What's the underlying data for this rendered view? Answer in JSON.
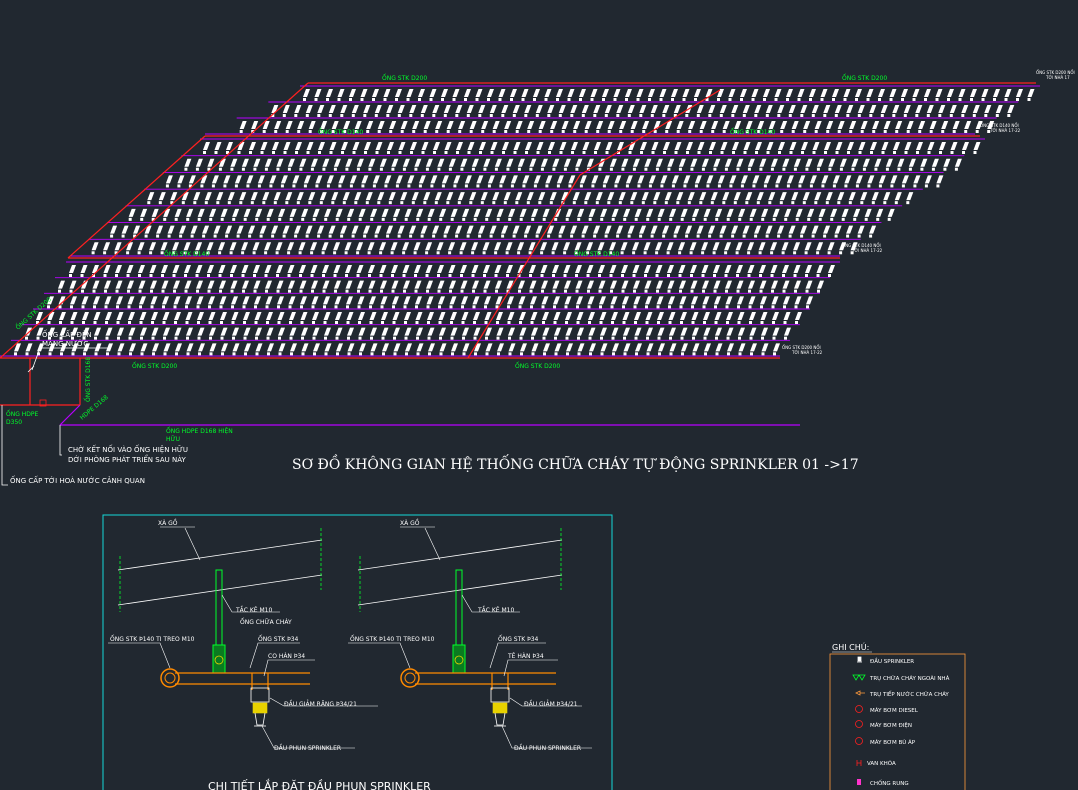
{
  "colors": {
    "background": "#212830",
    "pipe_red": "#ff2020",
    "branch_purple": "#b800ff",
    "label_green": "#00ff2a",
    "white": "#ffffff",
    "cyan_frame": "#15d8d8",
    "orange_frame": "#ff9a3c",
    "orange_pipe": "#ff8a00",
    "pipe_yellow": "#e8d200"
  },
  "plan": {
    "pipe_labels_top": [
      "ỐNG STK D200",
      "ỐNG STK D200"
    ],
    "pipe_labels_mid_upper": [
      "ỐNG STK D140",
      "ỐNG STK D140"
    ],
    "pipe_labels_mid_lower": [
      "ỐNG STK D140",
      "ỐNG STK D140"
    ],
    "pipe_labels_bottom": [
      "ỐNG STK D200",
      "ỐNG STK D200"
    ],
    "riser_left_label": "ỐNG STK D200",
    "riser_down_label": "ỐNG STK D168",
    "hdpe_diag_label": "HDPE D168",
    "supply_label_line1": "ỐNG CẤP ĐẾN",
    "supply_label_line2": "MẠNG NƯỚC",
    "hdpe_left_line1": "ỐNG HDPE",
    "hdpe_left_line2": "D350",
    "hdpe_purple_line1": "ỐNG HDPE D168 HIỆN",
    "hdpe_purple_line2": "HỮU",
    "note_connect_line1": "CHỜ KẾT NỐI VÀO ỐNG HIỆN HỮU",
    "note_connect_line2": "DỚI PHÒNG PHÁT TRIỂN SAU NÀY",
    "note_supply": "ỐNG CẤP TỚI HOÀ NƯỚC CẢNH QUAN",
    "end_tags": [
      {
        "line1": "ỐNG STK D200 NỐI",
        "line2": "TỚI NHÀ 17"
      },
      {
        "line1": "ỐNG STK D140 NỐI",
        "line2": "TỚI NHÀ 17-22"
      },
      {
        "line1": "ỐNG STK D140 NỐI",
        "line2": "TỚI NHÀ 17-22"
      },
      {
        "line1": "ỐNG STK D200 NỐI",
        "line2": "TỚI NHÀ 17-22"
      }
    ],
    "title": "SƠ ĐỒ KHÔNG GIAN HỆ THỐNG CHỮA CHÁY TỰ ĐỘNG SPRINKLER 01 ->17"
  },
  "detail": {
    "left": {
      "beam": "XÀ GỒ",
      "hanger": "TẮC KÊ M10",
      "pipe_note": "ỐNG CHỮA CHÁY",
      "main_pipe": "ỐNG STK Þ140 TI TREO M10",
      "branch_pipe": "ỐNG STK Þ34",
      "tee": "CO HÀN Þ34",
      "reducer": "ĐẦU GIẢM RĂNG Þ34/21",
      "head": "ĐẦU PHUN SPRINKLER"
    },
    "right": {
      "beam": "XÀ GỒ",
      "hanger": "TẮC KÊ M10",
      "main_pipe": "ỐNG STK Þ140 TI TREO M10",
      "branch_pipe": "ỐNG STK Þ34",
      "tee": "TÊ HÀN Þ34",
      "reducer": "ĐẦU GIẢM Þ34/21",
      "head": "ĐẦU PHUN SPRINKLER"
    },
    "caption": "CHI TIẾT LẮP ĐẶT ĐẦU PHUN SPRINKLER"
  },
  "legend": {
    "title": "GHI CHÚ:",
    "items": [
      {
        "label": "ĐẦU SPRINKLER",
        "icon": "sprinkler-head-icon",
        "color": "#ffffff"
      },
      {
        "label": "TRỤ CHỮA CHÁY NGOÀI NHÀ",
        "icon": "hydrant-icon",
        "color": "#00ff2a"
      },
      {
        "label": "TRỤ TIẾP NƯỚC CHỮA CHÁY",
        "icon": "inlet-icon",
        "color": "#ff9a3c"
      },
      {
        "label": "MÁY BƠM DIESEL",
        "icon": "diesel-pump-icon",
        "color": "#ff2020"
      },
      {
        "label": "MÁY BƠM ĐIỆN",
        "icon": "electric-pump-icon",
        "color": "#ff2020"
      },
      {
        "label": "MÁY BƠM BÙ ÁP",
        "icon": "jockey-pump-icon",
        "color": "#ff2020"
      },
      {
        "label": "VAN KHÓA",
        "icon": "valve-icon",
        "color": "#ff2020"
      },
      {
        "label": "CHỐNG RUNG",
        "icon": "anti-vibration-icon",
        "color": "#ff33cc"
      }
    ]
  }
}
